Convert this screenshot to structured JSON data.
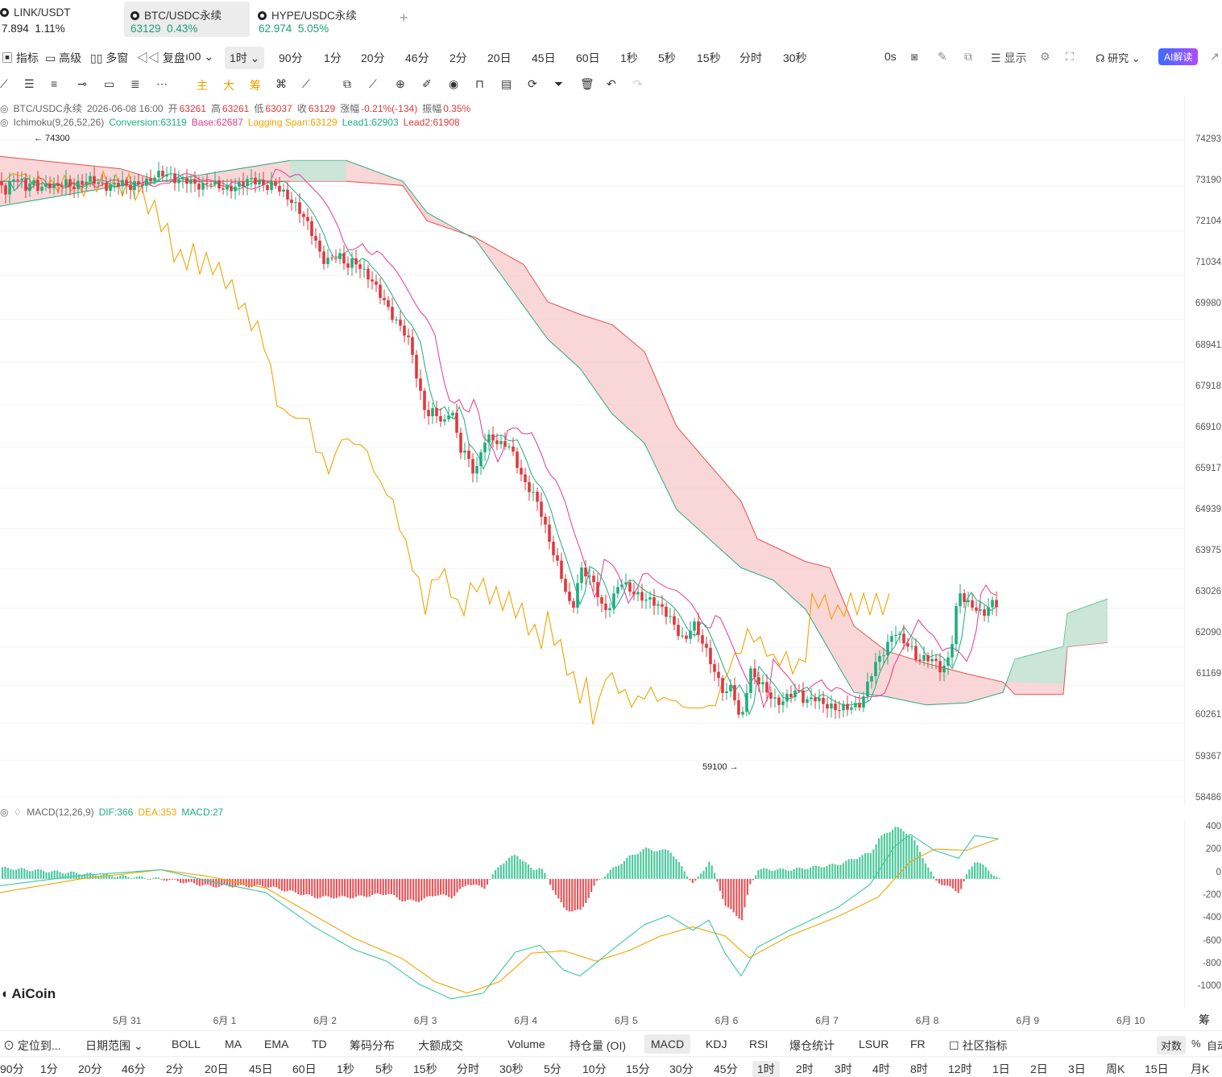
{
  "tabs": [
    {
      "symbol": "LINK/USDT",
      "price": "7.894",
      "change": "1.11%",
      "color": "#222222"
    },
    {
      "symbol": "BTC/USDC永续",
      "price": "63129",
      "change": "0.43%",
      "color": "#1a9e77"
    },
    {
      "symbol": "HYPE/USDC永续",
      "price": "62.974",
      "change": "5.05%",
      "color": "#1a9e77"
    }
  ],
  "add_tab_label": "+",
  "toolbar": {
    "indicators": "指标",
    "advanced": "高级",
    "multi_window": "多窗",
    "replay": "复盘",
    "chart_type": "00",
    "interval_selected": "1时",
    "intervals": [
      "90分",
      "1分",
      "20分",
      "46分",
      "2分",
      "20日",
      "45日",
      "60日",
      "1秒",
      "5秒",
      "15秒",
      "分时",
      "30秒"
    ],
    "countdown": "0s",
    "display": "显示",
    "research": "研究",
    "ai": "AI解读"
  },
  "drawing_tools": {
    "main": "主",
    "big": "大",
    "chips": "筹"
  },
  "legend": {
    "symbol": "BTC/USDC永续",
    "datetime": "2026-06-08 16:00",
    "open_label": "开",
    "open": "63261",
    "high_label": "高",
    "high": "63261",
    "low_label": "低",
    "low": "63037",
    "close_label": "收",
    "close": "63129",
    "change_label": "涨幅",
    "change": "-0.21%(-134)",
    "amp_label": "振幅",
    "amp": "0.35%",
    "ichimoku_name": "Ichimoku(9,26,52,26)",
    "conversion": "Conversion:63119",
    "base": "Base:62687",
    "lagging": "Lagging Span:63129",
    "lead1": "Lead1:62903",
    "lead2": "Lead2:61908"
  },
  "price_axis": [
    "74293",
    "73190",
    "72104",
    "71034",
    "69980",
    "68941",
    "67918",
    "66910",
    "65917",
    "64939",
    "63975",
    "63026",
    "62090",
    "61169",
    "60261",
    "59367",
    "58486"
  ],
  "high_marker": "← 74300",
  "low_marker": "59100 →",
  "macd_legend": {
    "name": "MACD(12,26,9)",
    "dif": "DIF:366",
    "dea": "DEA:353",
    "macd": "MACD:27"
  },
  "macd_axis": [
    "400",
    "200",
    "0",
    "-200",
    "-400",
    "-600",
    "-800",
    "-1000"
  ],
  "date_axis": [
    "5月 31",
    "6月 1",
    "6月 2",
    "6月 3",
    "6月 4",
    "6月 5",
    "6月 6",
    "6月 7",
    "6月 8",
    "6月 9",
    "6月 10"
  ],
  "watermark": "AiCoin",
  "bottom_toolbar": {
    "goto": "定位到...",
    "date_range": "日期范围",
    "indicators": [
      "BOLL",
      "MA",
      "EMA",
      "TD",
      "筹码分布",
      "大额成交",
      "Volume",
      "持仓量 (OI)",
      "MACD",
      "KDJ",
      "RSI",
      "爆仓统计",
      "LSUR",
      "FR"
    ],
    "selected": "MACD",
    "community": "社区指标",
    "log": "对数",
    "percent": "%",
    "auto": "自动",
    "chips_short": "筹"
  },
  "bottom_intervals": [
    "90分",
    "1分",
    "20分",
    "46分",
    "2分",
    "20日",
    "45日",
    "60日",
    "1秒",
    "5秒",
    "15秒",
    "分时",
    "30秒",
    "5分",
    "10分",
    "15分",
    "30分",
    "45分",
    "1时",
    "2时",
    "3时",
    "4时",
    "8时",
    "12时",
    "1日",
    "2日",
    "3日",
    "周K",
    "15日",
    "月K"
  ],
  "bottom_interval_selected": "1时",
  "chart_data": {
    "type": "candlestick",
    "interval": "1h",
    "x_range": [
      "2026-05-30",
      "2026-06-10"
    ],
    "y_range": [
      58486,
      74293
    ],
    "price_path": [
      [
        0,
        73300
      ],
      [
        8,
        73000
      ],
      [
        16,
        73400
      ],
      [
        24,
        73350
      ],
      [
        32,
        73150
      ],
      [
        40,
        73300
      ],
      [
        50,
        73100
      ],
      [
        60,
        73250
      ],
      [
        70,
        73150
      ],
      [
        80,
        73300
      ],
      [
        90,
        73150
      ],
      [
        100,
        73250
      ],
      [
        110,
        73350
      ],
      [
        120,
        73300
      ],
      [
        130,
        73150
      ],
      [
        140,
        73200
      ],
      [
        150,
        73300
      ],
      [
        160,
        73150
      ],
      [
        170,
        73250
      ],
      [
        180,
        73250
      ],
      [
        190,
        73400
      ],
      [
        200,
        73500
      ],
      [
        210,
        73450
      ],
      [
        220,
        73300
      ],
      [
        230,
        73350
      ],
      [
        240,
        73250
      ],
      [
        250,
        73150
      ],
      [
        260,
        73300
      ],
      [
        270,
        73200
      ],
      [
        280,
        73100
      ],
      [
        290,
        73150
      ],
      [
        300,
        73250
      ],
      [
        310,
        73350
      ],
      [
        320,
        73300
      ],
      [
        330,
        73150
      ],
      [
        340,
        73250
      ],
      [
        350,
        73050
      ],
      [
        360,
        72850
      ],
      [
        370,
        72650
      ],
      [
        380,
        72350
      ],
      [
        390,
        71950
      ],
      [
        400,
        71400
      ],
      [
        410,
        71400
      ],
      [
        420,
        71550
      ],
      [
        430,
        71250
      ],
      [
        440,
        71400
      ],
      [
        450,
        71150
      ],
      [
        460,
        70950
      ],
      [
        470,
        70650
      ],
      [
        480,
        70300
      ],
      [
        490,
        69950
      ],
      [
        500,
        69750
      ],
      [
        510,
        69350
      ],
      [
        520,
        68300
      ],
      [
        530,
        67650
      ],
      [
        540,
        67800
      ],
      [
        550,
        67400
      ],
      [
        560,
        67900
      ],
      [
        570,
        66900
      ],
      [
        580,
        66700
      ],
      [
        590,
        66200
      ],
      [
        600,
        67050
      ],
      [
        610,
        67150
      ],
      [
        620,
        66950
      ],
      [
        630,
        67000
      ],
      [
        640,
        66600
      ],
      [
        650,
        66050
      ],
      [
        660,
        65850
      ],
      [
        670,
        65450
      ],
      [
        680,
        64750
      ],
      [
        690,
        64200
      ],
      [
        700,
        63600
      ],
      [
        710,
        62900
      ],
      [
        720,
        63950
      ],
      [
        730,
        63850
      ],
      [
        740,
        63500
      ],
      [
        750,
        62900
      ],
      [
        760,
        63200
      ],
      [
        770,
        63700
      ],
      [
        780,
        63500
      ],
      [
        790,
        63350
      ],
      [
        800,
        63250
      ],
      [
        810,
        63200
      ],
      [
        820,
        63050
      ],
      [
        830,
        62850
      ],
      [
        840,
        62500
      ],
      [
        850,
        62200
      ],
      [
        860,
        62700
      ],
      [
        870,
        62300
      ],
      [
        880,
        61850
      ],
      [
        890,
        61350
      ],
      [
        900,
        60950
      ],
      [
        910,
        61200
      ],
      [
        915,
        60450
      ],
      [
        920,
        60350
      ],
      [
        925,
        60750
      ],
      [
        930,
        61550
      ],
      [
        940,
        61300
      ],
      [
        950,
        61100
      ],
      [
        960,
        60800
      ],
      [
        970,
        60750
      ],
      [
        980,
        60950
      ],
      [
        990,
        61050
      ],
      [
        1000,
        60750
      ],
      [
        1010,
        60900
      ],
      [
        1020,
        60750
      ],
      [
        1030,
        60650
      ],
      [
        1040,
        60600
      ],
      [
        1050,
        60650
      ],
      [
        1060,
        60650
      ],
      [
        1070,
        60750
      ],
      [
        1080,
        61400
      ],
      [
        1090,
        61800
      ],
      [
        1100,
        62050
      ],
      [
        1110,
        62500
      ],
      [
        1120,
        62250
      ],
      [
        1130,
        62100
      ],
      [
        1140,
        61750
      ],
      [
        1150,
        61850
      ],
      [
        1160,
        61750
      ],
      [
        1170,
        61500
      ],
      [
        1180,
        61950
      ],
      [
        1190,
        63450
      ],
      [
        1200,
        63150
      ],
      [
        1210,
        63050
      ],
      [
        1220,
        62850
      ],
      [
        1230,
        63150
      ],
      [
        1240,
        63129
      ]
    ],
    "macd": {
      "dif": 366,
      "dea": 353,
      "macd": 27,
      "y_range": [
        -1100,
        450
      ]
    }
  }
}
